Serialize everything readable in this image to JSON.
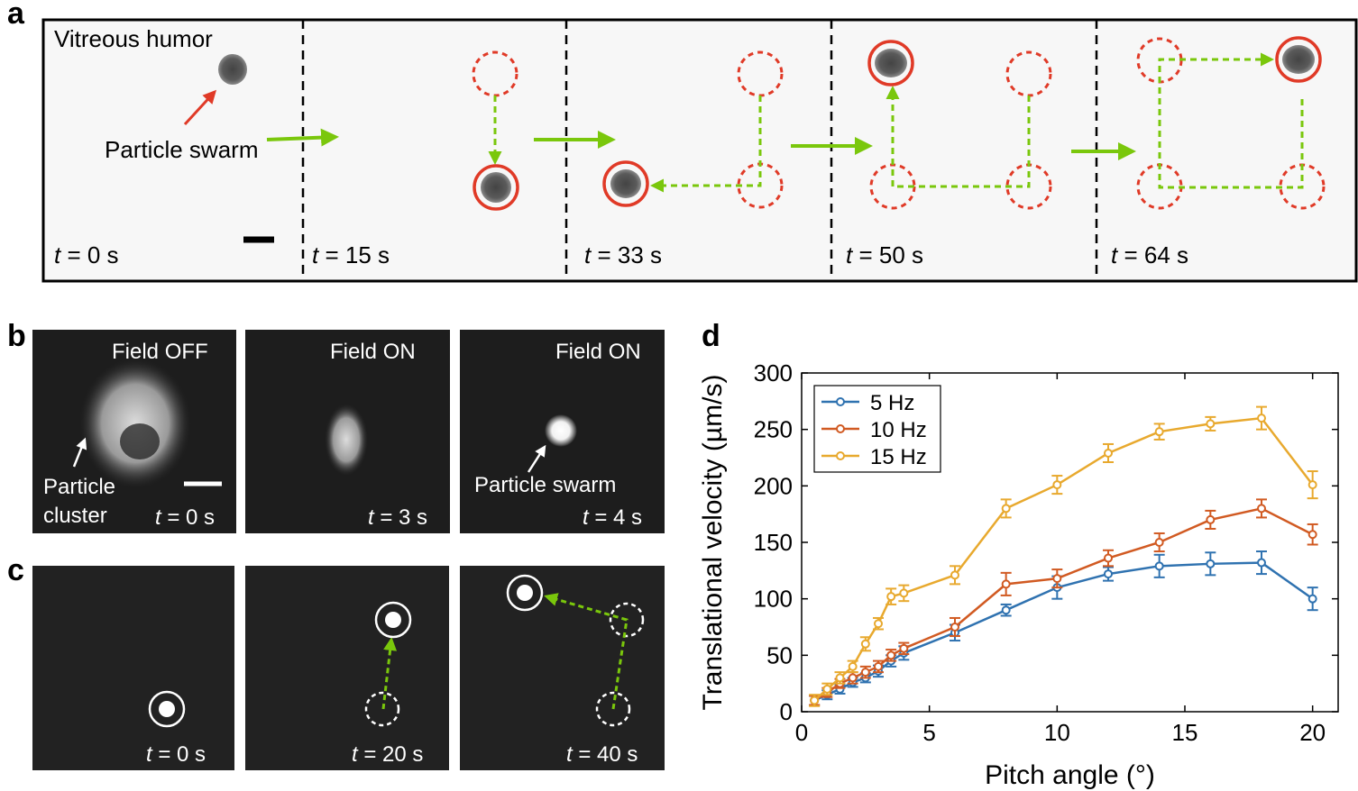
{
  "panel_a": {
    "label": "a",
    "medium_label": "Vitreous humor",
    "swarm_label": "Particle swarm",
    "frames": [
      {
        "t_prefix": "t",
        "t_value": " = 0 s"
      },
      {
        "t_prefix": "t",
        "t_value": " = 15 s"
      },
      {
        "t_prefix": "t",
        "t_value": " = 33 s"
      },
      {
        "t_prefix": "t",
        "t_value": " = 50 s"
      },
      {
        "t_prefix": "t",
        "t_value": " = 64 s"
      }
    ]
  },
  "panel_b": {
    "label": "b",
    "frames": [
      {
        "title": "Field OFF",
        "t_prefix": "t",
        "t_value": " = 0 s"
      },
      {
        "title": "Field ON",
        "t_prefix": "t",
        "t_value": " = 3 s"
      },
      {
        "title": "Field ON",
        "t_prefix": "t",
        "t_value": " = 4 s"
      }
    ],
    "cluster_label_1": "Particle",
    "cluster_label_2": "cluster",
    "swarm_label": "Particle swarm"
  },
  "panel_c": {
    "label": "c",
    "frames": [
      {
        "t_prefix": "t",
        "t_value": " = 0 s"
      },
      {
        "t_prefix": "t",
        "t_value": " = 20 s"
      },
      {
        "t_prefix": "t",
        "t_value": " = 40 s"
      }
    ]
  },
  "panel_d": {
    "label": "d"
  },
  "colors": {
    "red": "#e03a27",
    "green": "#7ac70c",
    "s5": "#2f72b0",
    "s10": "#d15a22",
    "s15": "#e8a92e"
  },
  "chart_data": {
    "type": "line",
    "title": "",
    "xlabel": "Pitch angle (°)",
    "ylabel": "Translational velocity (µm/s)",
    "xlim": [
      0,
      21
    ],
    "ylim": [
      0,
      300
    ],
    "xticks": [
      0,
      5,
      10,
      15,
      20
    ],
    "yticks": [
      0,
      50,
      100,
      150,
      200,
      250,
      300
    ],
    "legend_position": "top-left",
    "series": [
      {
        "name": "5 Hz",
        "color": "#2f72b0",
        "x": [
          0.5,
          1,
          1.5,
          2,
          2.5,
          3,
          3.5,
          4,
          6,
          8,
          10,
          12,
          14,
          16,
          18,
          20
        ],
        "y": [
          10,
          15,
          20,
          26,
          30,
          36,
          45,
          52,
          70,
          90,
          110,
          122,
          129,
          131,
          132,
          100
        ],
        "err": [
          4,
          4,
          4,
          4,
          4,
          5,
          5,
          6,
          7,
          5,
          10,
          6,
          10,
          10,
          10,
          10
        ]
      },
      {
        "name": "10 Hz",
        "color": "#d15a22",
        "x": [
          0.5,
          1,
          1.5,
          2,
          2.5,
          3,
          3.5,
          4,
          6,
          8,
          10,
          12,
          14,
          16,
          18,
          20
        ],
        "y": [
          10,
          17,
          25,
          30,
          35,
          40,
          50,
          56,
          75,
          113,
          118,
          136,
          150,
          170,
          180,
          157
        ],
        "err": [
          4,
          4,
          4,
          5,
          5,
          5,
          5,
          5,
          8,
          10,
          8,
          7,
          8,
          8,
          8,
          9
        ]
      },
      {
        "name": "15 Hz",
        "color": "#e8a92e",
        "x": [
          0.5,
          1,
          1.5,
          2,
          2.5,
          3,
          3.5,
          4,
          6,
          8,
          10,
          12,
          14,
          16,
          18,
          20
        ],
        "y": [
          10,
          20,
          30,
          40,
          60,
          78,
          102,
          105,
          121,
          180,
          201,
          229,
          248,
          255,
          260,
          201
        ],
        "err": [
          5,
          5,
          5,
          5,
          6,
          5,
          7,
          7,
          8,
          8,
          8,
          8,
          7,
          6,
          10,
          12
        ]
      }
    ]
  }
}
